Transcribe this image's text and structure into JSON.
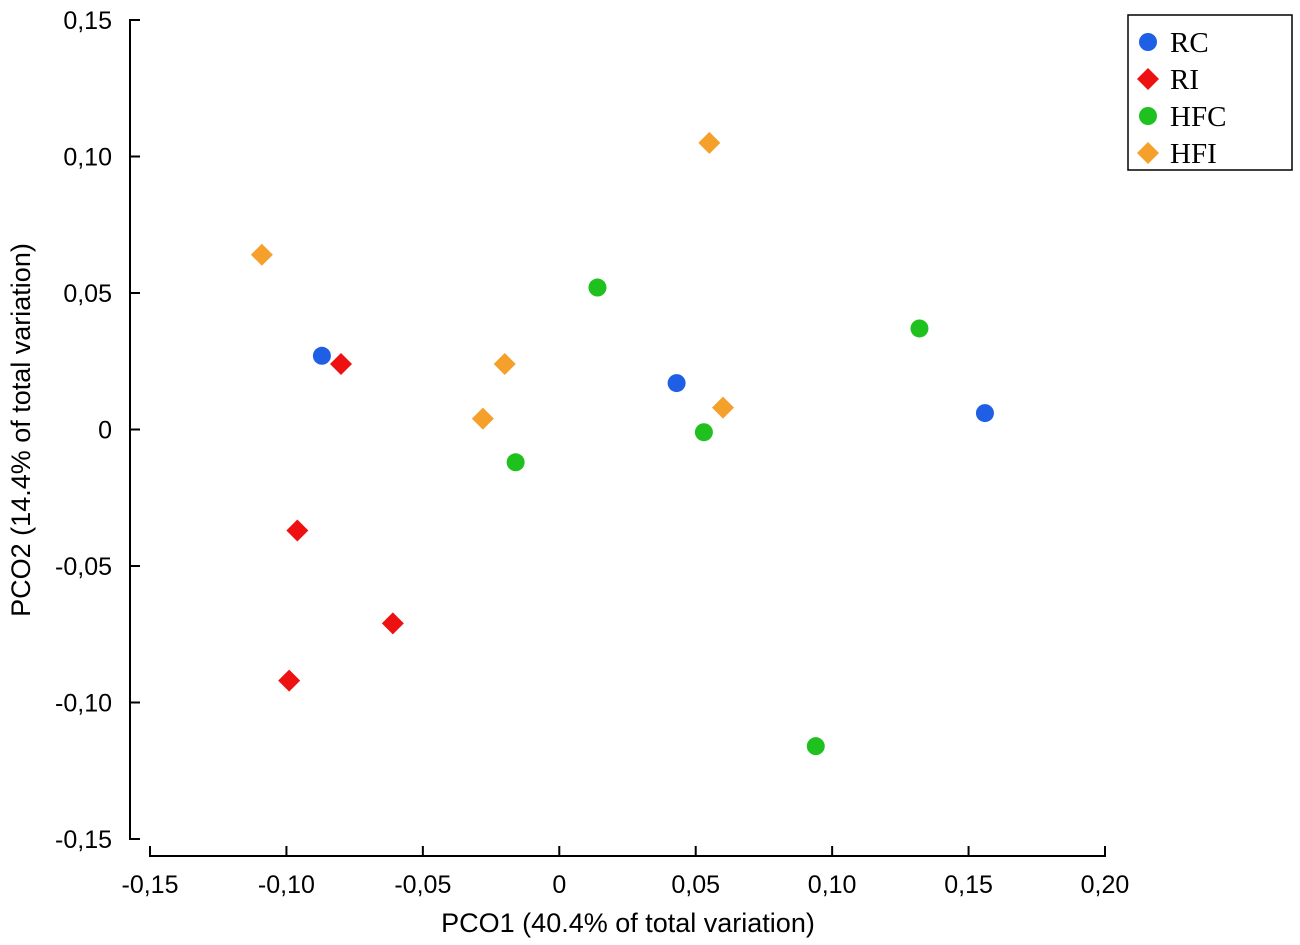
{
  "chart_data": {
    "type": "scatter",
    "title": "",
    "xlabel": "PCO1 (40.4% of total variation)",
    "ylabel": "PCO2 (14.4% of total variation)",
    "xlim": [
      -0.15,
      0.2
    ],
    "ylim": [
      -0.15,
      0.15
    ],
    "x_ticks": [
      -0.15,
      -0.1,
      -0.05,
      0,
      0.05,
      0.1,
      0.15,
      0.2
    ],
    "x_tick_labels": [
      "-0,15",
      "-0,10",
      "-0,05",
      "0",
      "0,05",
      "0,10",
      "0,15",
      "0,20"
    ],
    "y_ticks": [
      0.15,
      0.1,
      0.05,
      0,
      -0.05,
      -0.1,
      -0.15
    ],
    "y_tick_labels": [
      "0,15",
      "0,10",
      "0,05",
      "0",
      "-0,05",
      "-0,10",
      "-0,15"
    ],
    "grid": false,
    "legend_position": "top-right",
    "series": [
      {
        "name": "RC",
        "marker": "circle",
        "color": "#1f5fe6",
        "points": [
          {
            "x": -0.087,
            "y": 0.027
          },
          {
            "x": 0.043,
            "y": 0.017
          },
          {
            "x": 0.156,
            "y": 0.006
          }
        ]
      },
      {
        "name": "RI",
        "marker": "diamond",
        "color": "#ee1111",
        "points": [
          {
            "x": -0.08,
            "y": 0.024
          },
          {
            "x": -0.096,
            "y": -0.037
          },
          {
            "x": -0.061,
            "y": -0.071
          },
          {
            "x": -0.099,
            "y": -0.092
          }
        ]
      },
      {
        "name": "HFC",
        "marker": "circle",
        "color": "#1fc11f",
        "points": [
          {
            "x": 0.014,
            "y": 0.052
          },
          {
            "x": 0.132,
            "y": 0.037
          },
          {
            "x": 0.053,
            "y": -0.001
          },
          {
            "x": -0.016,
            "y": -0.012
          },
          {
            "x": 0.094,
            "y": -0.116
          }
        ]
      },
      {
        "name": "HFI",
        "marker": "diamond",
        "color": "#f5a02a",
        "points": [
          {
            "x": 0.055,
            "y": 0.105
          },
          {
            "x": -0.109,
            "y": 0.064
          },
          {
            "x": -0.02,
            "y": 0.024
          },
          {
            "x": -0.028,
            "y": 0.004
          },
          {
            "x": 0.06,
            "y": 0.008
          }
        ]
      }
    ]
  }
}
